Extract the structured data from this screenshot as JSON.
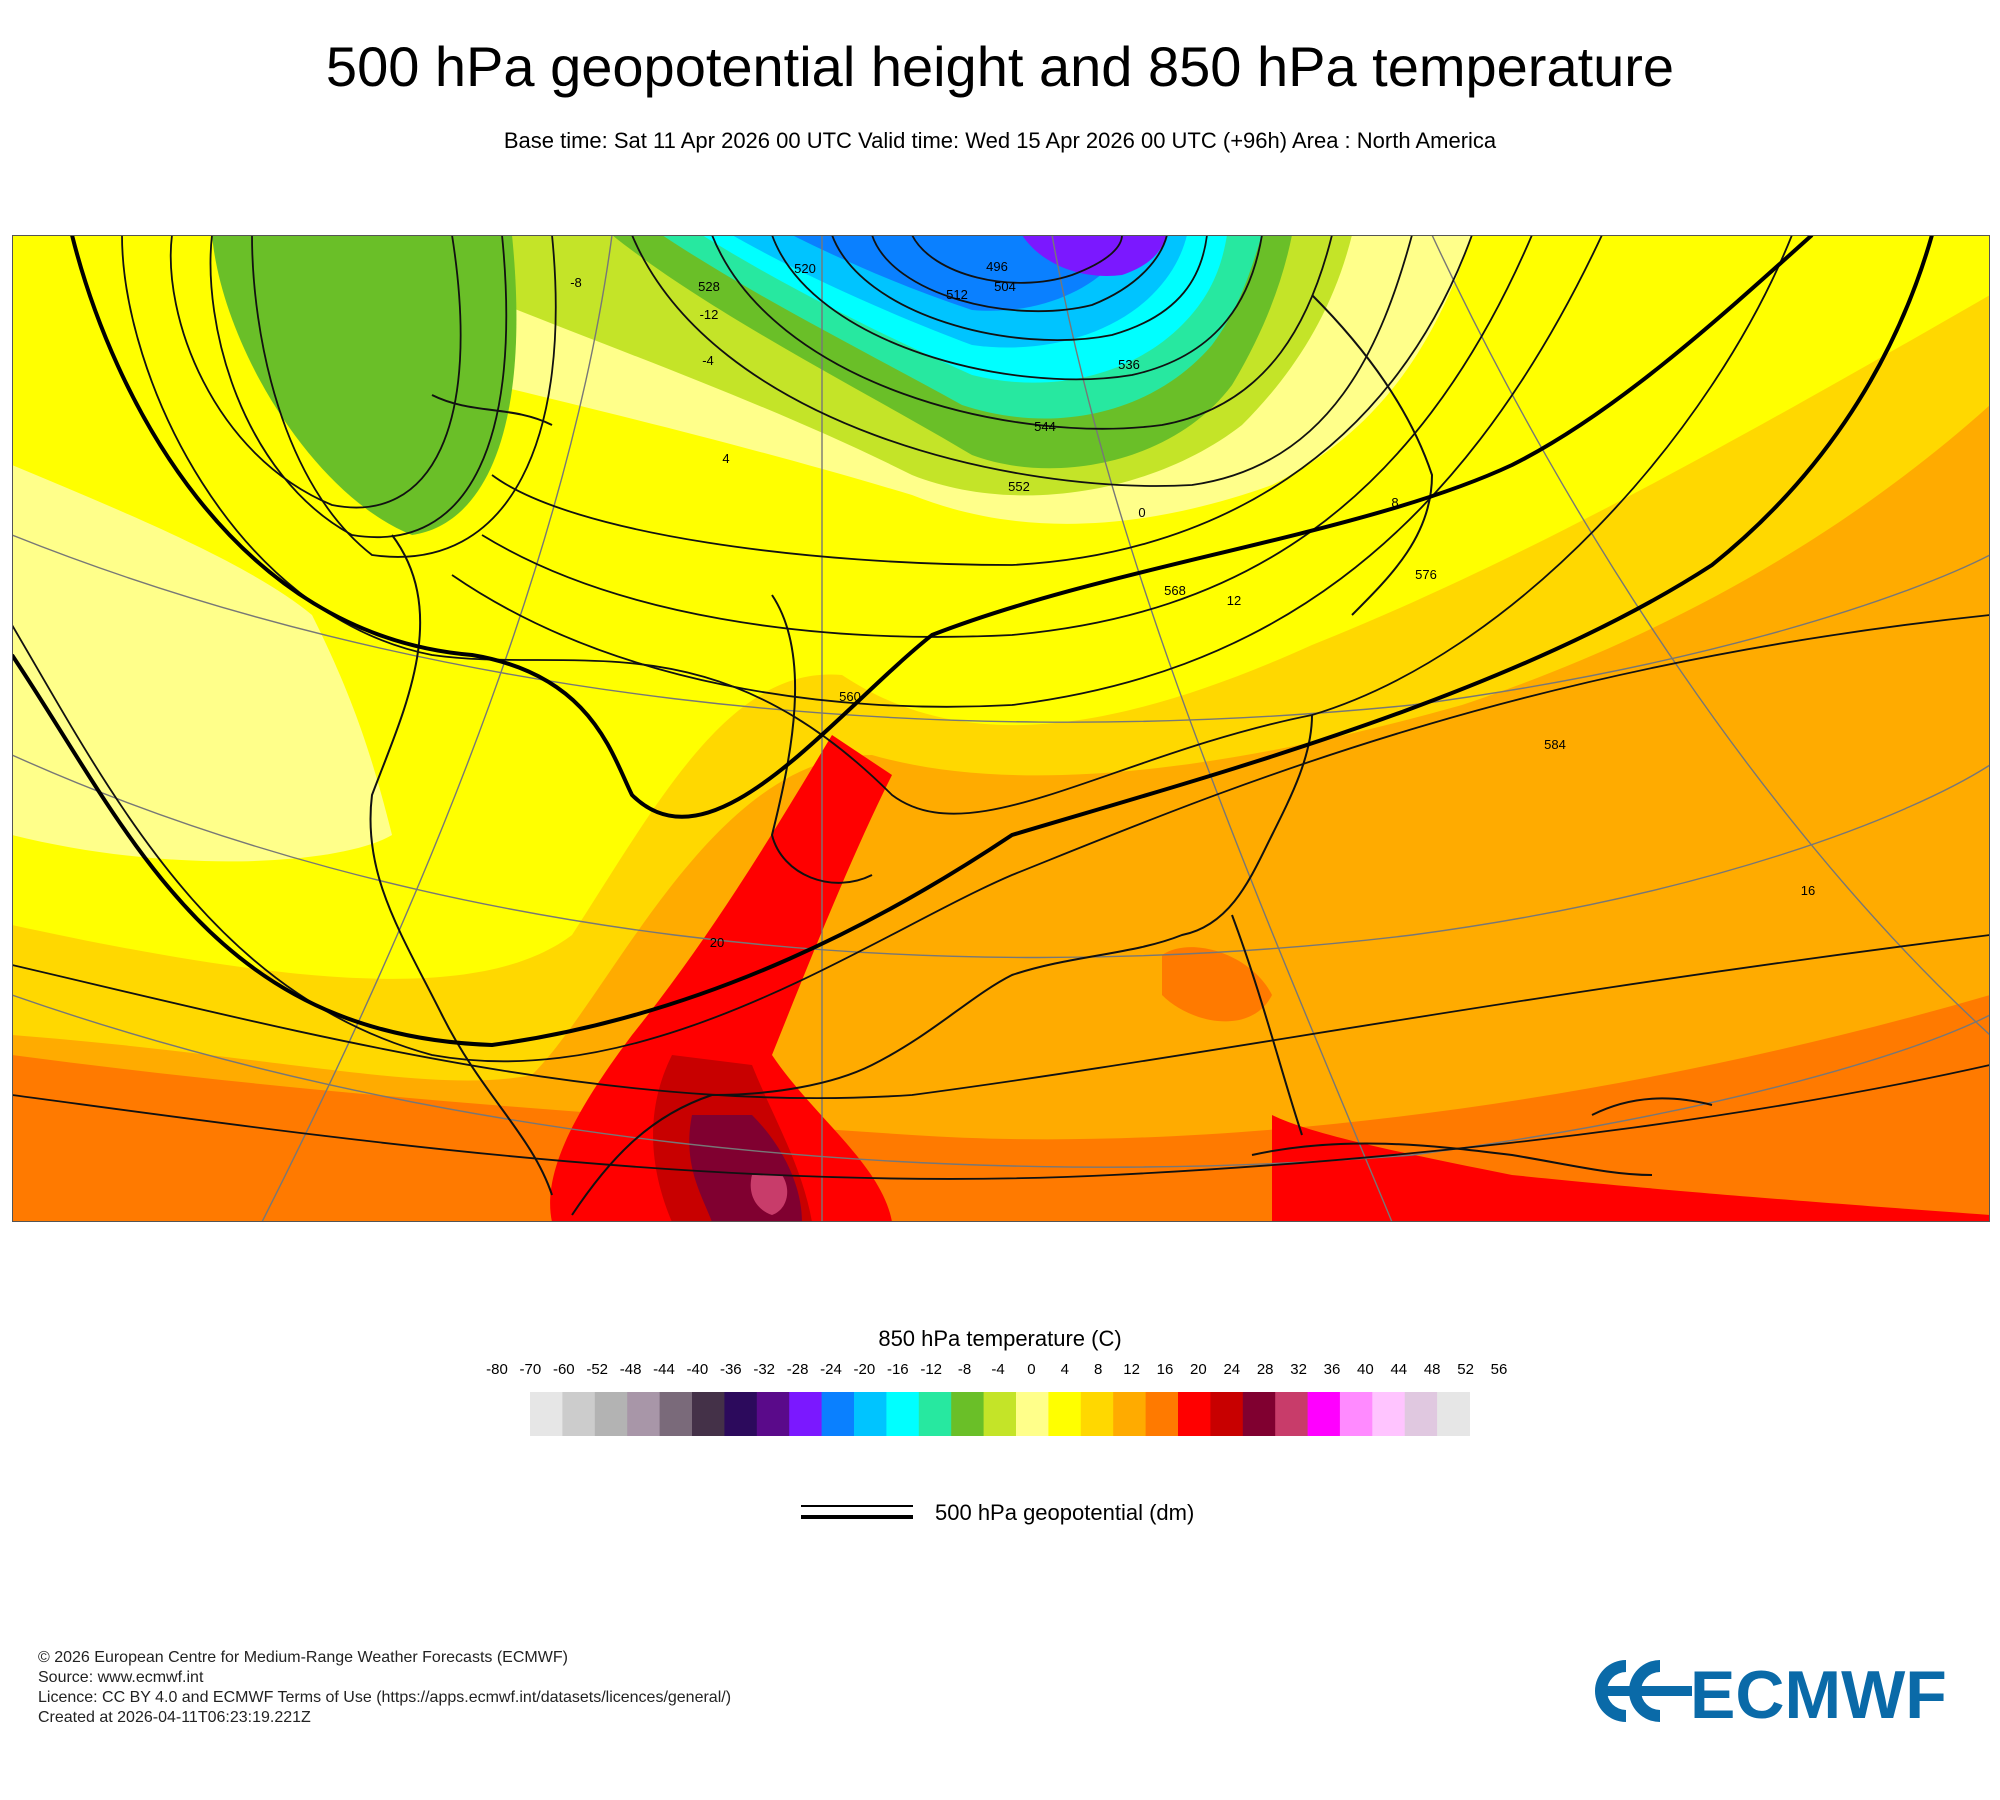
{
  "title": "500 hPa geopotential height and 850 hPa temperature",
  "subtitle": "Base time: Sat 11 Apr 2026 00 UTC Valid time: Wed 15 Apr 2026 00 UTC (+96h) Area : North America",
  "colorbar": {
    "title": "850 hPa temperature (C)",
    "ticks": [
      "-80",
      "-70",
      "-60",
      "-52",
      "-48",
      "-44",
      "-40",
      "-36",
      "-32",
      "-28",
      "-24",
      "-20",
      "-16",
      "-12",
      "-8",
      "-4",
      "0",
      "4",
      "8",
      "12",
      "16",
      "20",
      "24",
      "28",
      "32",
      "36",
      "40",
      "44",
      "48",
      "52",
      "56"
    ],
    "colors": [
      "#e6e6e6",
      "#cccccc",
      "#b3b3b3",
      "#a896a8",
      "#7a6a7a",
      "#443148",
      "#2c0a5c",
      "#5a0a8a",
      "#7b18ff",
      "#0a80ff",
      "#00c4ff",
      "#00ffff",
      "#27e8a0",
      "#6abf28",
      "#c4e428",
      "#ffff8a",
      "#ffff00",
      "#ffd800",
      "#ffab00",
      "#ff7a00",
      "#ff0000",
      "#c80000",
      "#800030",
      "#c83c6a",
      "#ff00ff",
      "#ff8aff",
      "#ffc4ff",
      "#e0c8e0",
      "#e6e6e6"
    ]
  },
  "contour_legend": {
    "label": "500 hPa geopotential (dm)"
  },
  "map": {
    "height_labels": [
      "496",
      "504",
      "512",
      "520",
      "528",
      "536",
      "544",
      "552",
      "560",
      "568",
      "576",
      "584"
    ],
    "temperature_labels": [
      "-12",
      "-8",
      "-4",
      "0",
      "4",
      "8",
      "12",
      "16",
      "20"
    ]
  },
  "footer": {
    "lines": [
      "© 2026 European Centre for Medium-Range Weather Forecasts (ECMWF)",
      "Source: www.ecmwf.int",
      "Licence: CC BY 4.0 and ECMWF Terms of Use (https://apps.ecmwf.int/datasets/licences/general/)",
      "Created at 2026-04-11T06:23:19.221Z"
    ]
  },
  "logo": {
    "text": "ECMWF",
    "color": "#0a6aa8"
  }
}
